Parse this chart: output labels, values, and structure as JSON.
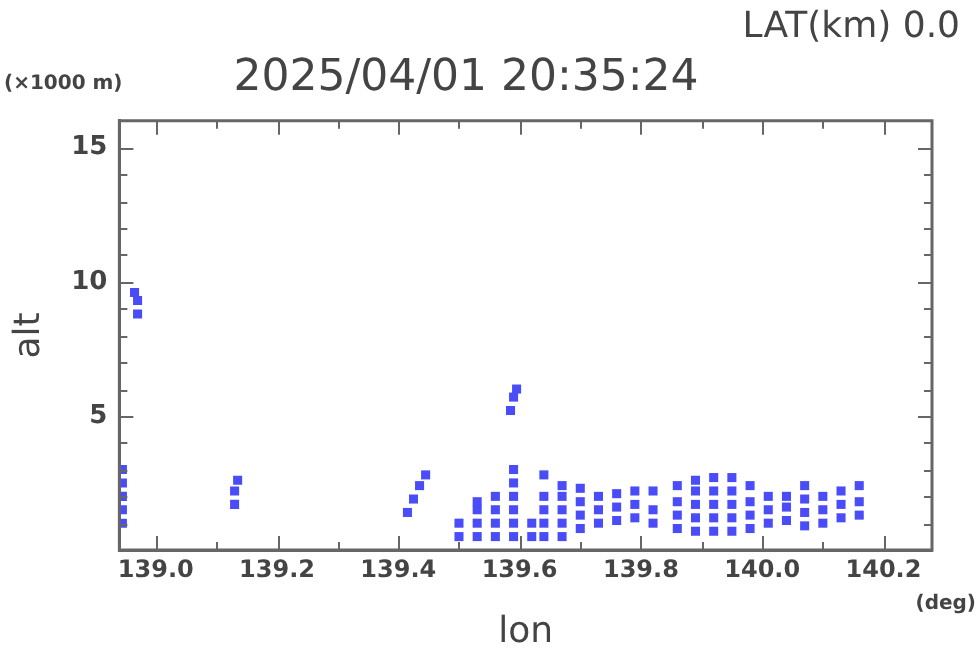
{
  "chart_data": {
    "type": "scatter",
    "title": "2025/04/01 20:35:24",
    "xlabel": "lon",
    "ylabel": "alt",
    "annotations": [
      "LAT(km) 0.0",
      "(×1000 m)",
      "(deg)"
    ],
    "marker": "square",
    "grid": false,
    "legend": false,
    "xlim": [
      138.94,
      140.28
    ],
    "ylim": [
      0,
      16
    ],
    "xticks": [
      {
        "value": 139.0,
        "label": "139.0"
      },
      {
        "value": 139.1,
        "label": null
      },
      {
        "value": 139.2,
        "label": "139.2"
      },
      {
        "value": 139.3,
        "label": null
      },
      {
        "value": 139.4,
        "label": "139.4"
      },
      {
        "value": 139.5,
        "label": null
      },
      {
        "value": 139.6,
        "label": "139.6"
      },
      {
        "value": 139.7,
        "label": null
      },
      {
        "value": 139.8,
        "label": "139.8"
      },
      {
        "value": 139.9,
        "label": null
      },
      {
        "value": 140.0,
        "label": "140.0"
      },
      {
        "value": 140.1,
        "label": null
      },
      {
        "value": 140.2,
        "label": "140.2"
      }
    ],
    "yticks": [
      {
        "value": 1,
        "label": null
      },
      {
        "value": 2,
        "label": null
      },
      {
        "value": 3,
        "label": null
      },
      {
        "value": 4,
        "label": null
      },
      5,
      {
        "value": 6,
        "label": null
      },
      {
        "value": 7,
        "label": null
      },
      {
        "value": 8,
        "label": null
      },
      {
        "value": 9,
        "label": null
      },
      10,
      {
        "value": 11,
        "label": null
      },
      {
        "value": 12,
        "label": null
      },
      {
        "value": 13,
        "label": null
      },
      {
        "value": 14,
        "label": null
      },
      15
    ],
    "series": [
      {
        "color": "#4a4cf8",
        "x": [
          138.945,
          138.945,
          138.945,
          138.945,
          138.945,
          138.97,
          138.97,
          138.965,
          139.13,
          139.13,
          139.135,
          139.415,
          139.425,
          139.435,
          139.445,
          139.585,
          139.59,
          139.595,
          139.5,
          139.5,
          139.53,
          139.53,
          139.53,
          139.53,
          139.56,
          139.56,
          139.56,
          139.56,
          139.59,
          139.59,
          139.59,
          139.59,
          139.59,
          139.59,
          139.62,
          139.62,
          139.64,
          139.64,
          139.64,
          139.64,
          139.64,
          139.67,
          139.67,
          139.67,
          139.67,
          139.67,
          139.7,
          139.7,
          139.7,
          139.7,
          139.73,
          139.73,
          139.73,
          139.76,
          139.76,
          139.76,
          139.79,
          139.79,
          139.79,
          139.82,
          139.82,
          139.82,
          139.86,
          139.86,
          139.86,
          139.86,
          139.89,
          139.89,
          139.89,
          139.89,
          139.89,
          139.92,
          139.92,
          139.92,
          139.92,
          139.92,
          139.95,
          139.95,
          139.95,
          139.95,
          139.95,
          139.98,
          139.98,
          139.98,
          139.98,
          140.01,
          140.01,
          140.01,
          140.04,
          140.04,
          140.04,
          140.07,
          140.07,
          140.07,
          140.07,
          140.1,
          140.1,
          140.1,
          140.13,
          140.13,
          140.13,
          140.16,
          140.16,
          140.16
        ],
        "values": [
          1,
          1.5,
          2,
          2.5,
          3,
          8.8,
          9.3,
          9.6,
          1.7,
          2.2,
          2.6,
          1.4,
          1.9,
          2.4,
          2.8,
          5.2,
          5.7,
          6,
          0.5,
          1,
          0.5,
          1,
          1.5,
          1.8,
          0.5,
          1,
          1.5,
          2,
          0.5,
          1,
          1.5,
          2,
          2.5,
          3,
          0.5,
          1,
          0.5,
          1,
          1.5,
          2,
          2.8,
          0.5,
          1,
          1.5,
          2,
          2.4,
          0.8,
          1.3,
          1.8,
          2.3,
          1,
          1.5,
          2,
          1.1,
          1.6,
          2.1,
          1.2,
          1.7,
          2.2,
          1,
          1.5,
          2.2,
          0.8,
          1.3,
          1.8,
          2.4,
          0.7,
          1.2,
          1.7,
          2.2,
          2.6,
          0.7,
          1.2,
          1.7,
          2.2,
          2.7,
          0.7,
          1.2,
          1.7,
          2.2,
          2.7,
          0.8,
          1.3,
          1.8,
          2.4,
          1,
          1.5,
          2,
          1.1,
          1.6,
          2,
          0.9,
          1.4,
          1.9,
          2.4,
          1,
          1.5,
          2,
          1.2,
          1.7,
          2.2,
          1.3,
          1.8,
          2.4
        ]
      }
    ]
  }
}
